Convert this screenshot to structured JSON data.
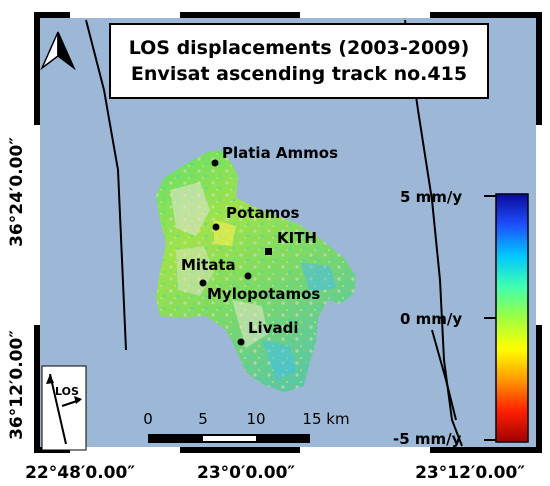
{
  "title": {
    "line1": "LOS displacements (2003-2009)",
    "line2": "Envisat ascending track no.415"
  },
  "places": [
    {
      "name": "Platia Ammos",
      "marker": "circle"
    },
    {
      "name": "Potamos",
      "marker": "circle"
    },
    {
      "name": "KITH",
      "marker": "square"
    },
    {
      "name": "Mitata",
      "marker": "circle"
    },
    {
      "name": "Mylopotamos",
      "marker": "circle"
    },
    {
      "name": "Livadi",
      "marker": "circle"
    }
  ],
  "lat_labels": [
    "36°24′0.00″",
    "36°12′0.00″"
  ],
  "lon_labels": [
    "22°48′0.00″",
    "23°0′0.00″",
    "23°12′0.00″"
  ],
  "colorbar": {
    "labels": [
      "5 mm/y",
      "0 mm/y",
      "-5 mm/y"
    ],
    "max": 5,
    "min": -5,
    "unit": "mm/y",
    "colors": [
      "#0a0a9a",
      "#1e50ff",
      "#00c8ff",
      "#40ffb0",
      "#a0ff40",
      "#ffff00",
      "#ff9900",
      "#ff2000",
      "#a00000"
    ]
  },
  "scale_bar": {
    "ticks": [
      "0",
      "5",
      "10",
      "15 km"
    ]
  },
  "los_inset": {
    "label": "LOS"
  },
  "north_arrow": {
    "icon": "north-arrow-icon"
  },
  "colors": {
    "sea": "#9cb8d6",
    "frame": "#000000"
  }
}
